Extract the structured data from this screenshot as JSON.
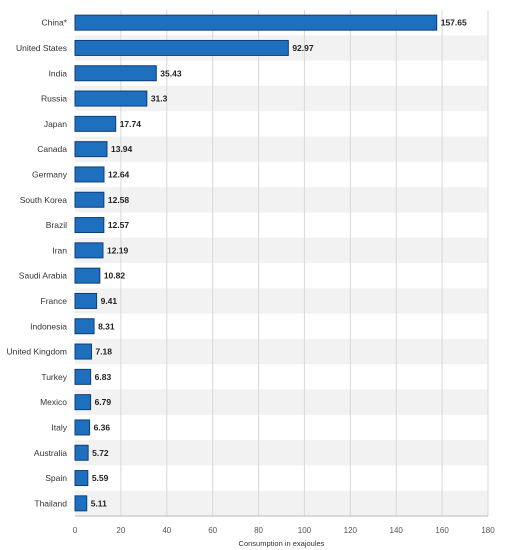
{
  "chart_data": {
    "type": "bar",
    "orientation": "horizontal",
    "categories": [
      "China*",
      "United States",
      "India",
      "Russia",
      "Japan",
      "Canada",
      "Germany",
      "South Korea",
      "Brazil",
      "Iran",
      "Saudi Arabia",
      "France",
      "Indonesia",
      "United Kingdom",
      "Turkey",
      "Mexico",
      "Italy",
      "Australia",
      "Spain",
      "Thailand"
    ],
    "values": [
      157.65,
      92.97,
      35.43,
      31.3,
      17.74,
      13.94,
      12.64,
      12.58,
      12.57,
      12.19,
      10.82,
      9.41,
      8.31,
      7.18,
      6.83,
      6.79,
      6.36,
      5.72,
      5.59,
      5.11
    ],
    "value_labels": [
      "157.65",
      "92.97",
      "35.43",
      "31.3",
      "17.74",
      "13.94",
      "12.64",
      "12.58",
      "12.57",
      "12.19",
      "10.82",
      "9.41",
      "8.31",
      "7.18",
      "6.83",
      "6.79",
      "6.36",
      "5.72",
      "5.59",
      "5.11"
    ],
    "xlabel": "Consumption in exajoules",
    "ylabel": "",
    "xlim": [
      0,
      180
    ],
    "xticks": [
      "0",
      "20",
      "40",
      "60",
      "80",
      "100",
      "120",
      "140",
      "160",
      "180"
    ],
    "grid": true,
    "legend": "none",
    "bar_color": "#1f6fbf",
    "bar_stroke": "#0f3f73",
    "row_band_color": "#f2f2f2",
    "grid_color": "#d8d8d8"
  }
}
